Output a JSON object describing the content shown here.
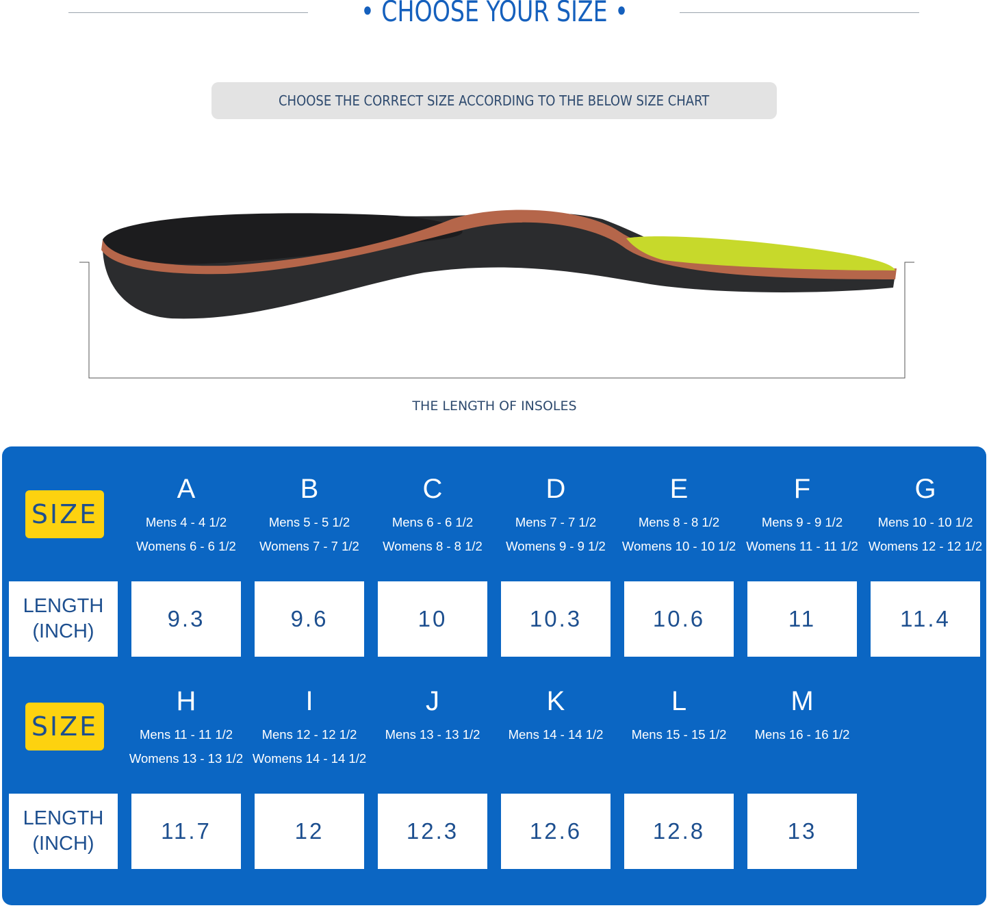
{
  "header": {
    "title": "• CHOOSE YOUR SIZE •",
    "subtitle": "CHOOSE THE CORRECT SIZE ACCORDING TO THE BELOW SIZE CHART"
  },
  "diagram": {
    "caption": "THE LENGTH OF INSOLES"
  },
  "colors": {
    "brand_blue": "#0b66c3",
    "badge_yellow": "#fdd20f",
    "text_navy": "#1d4f8f"
  },
  "chart": {
    "size_label": "SIZE",
    "length_label_line1": "LENGTH",
    "length_label_line2": "(INCH)",
    "rows": [
      {
        "sizes": [
          {
            "letter": "A",
            "mens": "Mens 4 - 4 1/2",
            "womens": "Womens 6 - 6 1/2",
            "length": "9.3"
          },
          {
            "letter": "B",
            "mens": "Mens 5 - 5 1/2",
            "womens": "Womens 7 - 7 1/2",
            "length": "9.6"
          },
          {
            "letter": "C",
            "mens": "Mens 6 - 6 1/2",
            "womens": "Womens 8 - 8 1/2",
            "length": "10"
          },
          {
            "letter": "D",
            "mens": "Mens 7 - 7 1/2",
            "womens": "Womens 9 - 9 1/2",
            "length": "10.3"
          },
          {
            "letter": "E",
            "mens": "Mens 8 - 8 1/2",
            "womens": "Womens 10 - 10 1/2",
            "length": "10.6"
          },
          {
            "letter": "F",
            "mens": "Mens 9 - 9 1/2",
            "womens": "Womens 11 - 11 1/2",
            "length": "11"
          },
          {
            "letter": "G",
            "mens": "Mens 10 - 10 1/2",
            "womens": "Womens 12 - 12 1/2",
            "length": "11.4"
          }
        ]
      },
      {
        "sizes": [
          {
            "letter": "H",
            "mens": "Mens 11 - 11 1/2",
            "womens": "Womens 13 - 13 1/2",
            "length": "11.7"
          },
          {
            "letter": "I",
            "mens": "Mens 12 - 12 1/2",
            "womens": "Womens 14 - 14 1/2",
            "length": "12"
          },
          {
            "letter": "J",
            "mens": "Mens 13 - 13 1/2",
            "womens": "",
            "length": "12.3"
          },
          {
            "letter": "K",
            "mens": "Mens 14 - 14 1/2",
            "womens": "",
            "length": "12.6"
          },
          {
            "letter": "L",
            "mens": "Mens 15 - 15 1/2",
            "womens": "",
            "length": "12.8"
          },
          {
            "letter": "M",
            "mens": "Mens 16 - 16 1/2",
            "womens": "",
            "length": "13"
          }
        ]
      }
    ]
  }
}
